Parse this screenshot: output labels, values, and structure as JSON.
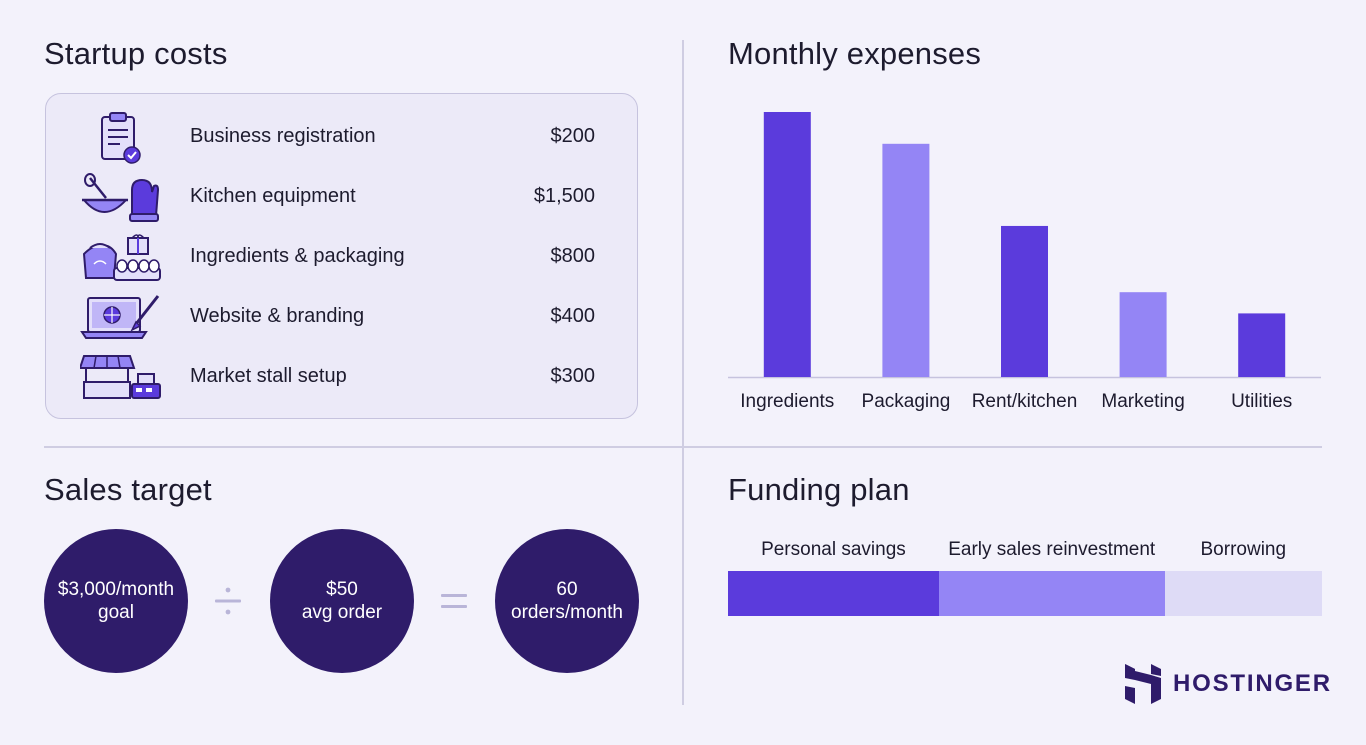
{
  "startup_costs": {
    "title": "Startup costs",
    "items": [
      {
        "label": "Business registration",
        "value": "$200",
        "icon": "clipboard-check-icon"
      },
      {
        "label": "Kitchen equipment",
        "value": "$1,500",
        "icon": "mixing-bowl-mitt-icon"
      },
      {
        "label": "Ingredients & packaging",
        "value": "$800",
        "icon": "flour-eggs-gift-icon"
      },
      {
        "label": "Website & branding",
        "value": "$400",
        "icon": "laptop-brush-icon"
      },
      {
        "label": "Market stall setup",
        "value": "$300",
        "icon": "market-stall-register-icon"
      }
    ]
  },
  "monthly_expenses": {
    "title": "Monthly expenses"
  },
  "chart_data": {
    "type": "bar",
    "title": "Monthly expenses",
    "categories": [
      "Ingredients",
      "Packaging",
      "Rent/kitchen",
      "Marketing",
      "Utilities"
    ],
    "values": [
      100,
      88,
      57,
      32,
      24
    ],
    "colors": [
      "#5b3bdc",
      "#9485f5",
      "#5b3bdc",
      "#9485f5",
      "#5b3bdc"
    ],
    "ylim": [
      0,
      100
    ],
    "grid": false,
    "legend": "none",
    "xlabel": "",
    "ylabel": ""
  },
  "sales_target": {
    "title": "Sales target",
    "goal": {
      "line1": "$3,000/month",
      "line2": "goal"
    },
    "divide_symbol": "divide-icon",
    "avg_order": {
      "line1": "$50",
      "line2": "avg order"
    },
    "equals_symbol": "equals-icon",
    "result": {
      "line1": "60",
      "line2": "orders/month"
    }
  },
  "funding_plan": {
    "title": "Funding plan",
    "segments": [
      {
        "label": "Personal savings",
        "share": 0.355,
        "color": "#5b3bdc"
      },
      {
        "label": "Early sales reinvestment",
        "share": 0.38,
        "color": "#9485f5"
      },
      {
        "label": "Borrowing",
        "share": 0.265,
        "color": "#dedbf6"
      }
    ]
  },
  "brand": {
    "name": "HOSTINGER",
    "icon": "hostinger-logo-icon",
    "color": "#2f1c6a"
  },
  "colors": {
    "accent": "#5b3bdc",
    "accent_light": "#9485f5",
    "dark": "#2f1c6a",
    "background": "#f3f2fb"
  }
}
